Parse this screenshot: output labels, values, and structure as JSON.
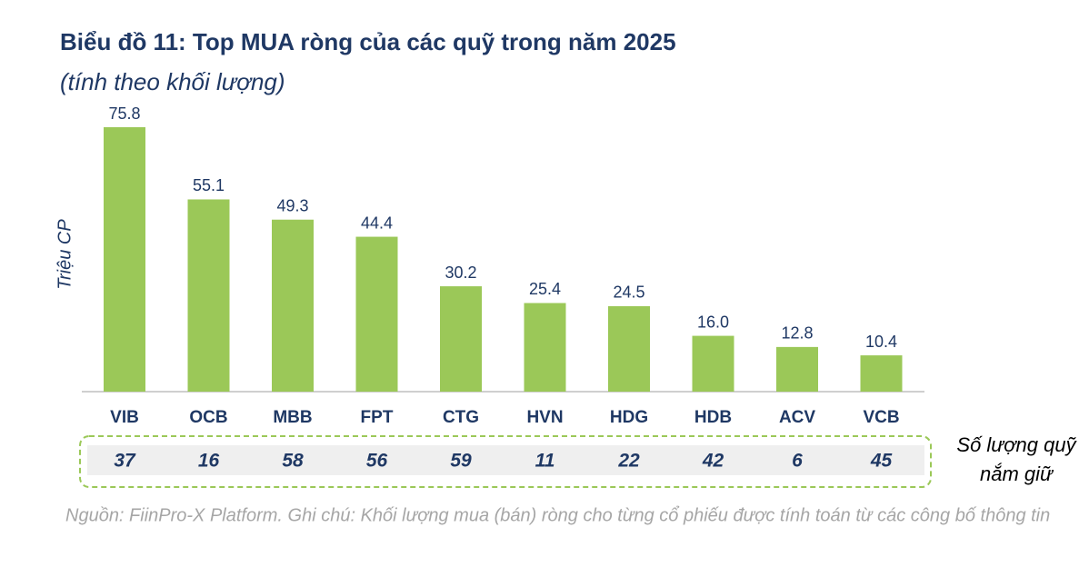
{
  "chart_data": {
    "type": "bar",
    "title": "Biểu đồ 11: Top MUA ròng của các quỹ trong năm 2025",
    "subtitle": "(tính theo khối lượng)",
    "y_label": "Triệu CP",
    "categories": [
      "VIB",
      "OCB",
      "MBB",
      "FPT",
      "CTG",
      "HVN",
      "HDG",
      "HDB",
      "ACV",
      "VCB"
    ],
    "values": [
      75.8,
      55.1,
      49.3,
      44.4,
      30.2,
      25.4,
      24.5,
      16.0,
      12.8,
      10.4
    ],
    "value_labels": [
      "75.8",
      "55.1",
      "49.3",
      "44.4",
      "30.2",
      "25.4",
      "24.5",
      "16.0",
      "12.8",
      "10.4"
    ],
    "color": "#9bc858",
    "fund_counts": [
      37,
      16,
      58,
      56,
      59,
      11,
      22,
      42,
      6,
      45
    ],
    "fund_counts_label": [
      "Số lượng quỹ",
      "nắm giữ"
    ],
    "source": "Nguồn: FiinPro-X Platform. Ghi chú: Khối lượng mua (bán) ròng cho từng cổ phiếu được tính toán từ các công bố thông tin"
  }
}
